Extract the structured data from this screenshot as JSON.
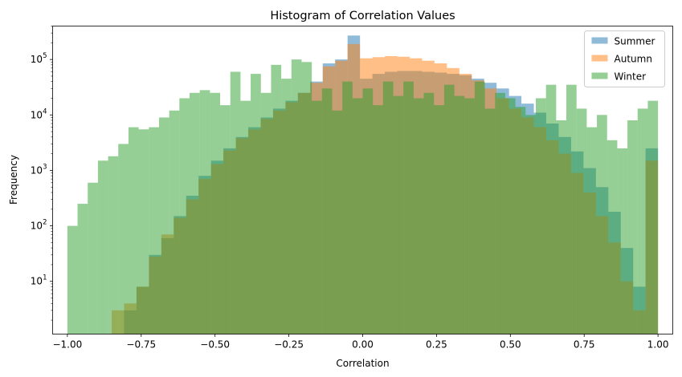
{
  "chart_data": {
    "type": "bar",
    "histogram": true,
    "title": "Histogram of Correlation Values",
    "xlabel": "Correlation",
    "ylabel": "Frequency",
    "xlim": [
      -1.05,
      1.05
    ],
    "ylim": [
      1.12,
      400000
    ],
    "yscale": "log",
    "x_ticks": [
      -1.0,
      -0.75,
      -0.5,
      -0.25,
      0.0,
      0.25,
      0.5,
      0.75,
      1.0
    ],
    "x_tick_labels": [
      "−1.00",
      "−0.75",
      "−0.50",
      "−0.25",
      "0.00",
      "0.25",
      "0.50",
      "0.75",
      "1.00"
    ],
    "y_ticks": [
      {
        "value": 10,
        "base": "10",
        "exp": "1"
      },
      {
        "value": 100,
        "base": "10",
        "exp": "2"
      },
      {
        "value": 1000,
        "base": "10",
        "exp": "3"
      },
      {
        "value": 10000,
        "base": "10",
        "exp": "4"
      },
      {
        "value": 100000,
        "base": "10",
        "exp": "5"
      }
    ],
    "grid": false,
    "legend_position": "top-right",
    "alpha": 0.5,
    "series": [
      {
        "name": "Summer",
        "color": "#1f77b4",
        "bin_start": -0.85,
        "bin_end": 1.0,
        "values": [
          1,
          3,
          8,
          30,
          60,
          150,
          350,
          800,
          1500,
          2500,
          4000,
          6000,
          9000,
          13000,
          18000,
          25000,
          40000,
          85000,
          100000,
          270000,
          45000,
          55000,
          60000,
          62000,
          62000,
          60000,
          58000,
          55000,
          52000,
          45000,
          38000,
          30000,
          22000,
          16000,
          11000,
          7000,
          4000,
          2200,
          1100,
          500,
          180,
          40,
          8,
          2500
        ]
      },
      {
        "name": "Autumn",
        "color": "#ff7f0e",
        "bin_start": -0.85,
        "bin_end": 1.0,
        "values": [
          3,
          4,
          8,
          28,
          70,
          140,
          300,
          700,
          1300,
          2300,
          3800,
          5500,
          8500,
          12000,
          17000,
          25000,
          38000,
          75000,
          95000,
          190000,
          105000,
          110000,
          115000,
          112000,
          105000,
          95000,
          85000,
          70000,
          55000,
          42000,
          30000,
          20000,
          13000,
          9000,
          6000,
          3500,
          2000,
          900,
          400,
          150,
          50,
          10,
          3,
          1500
        ]
      },
      {
        "name": "Winter",
        "color": "#2ca02c",
        "bin_start": -1.0,
        "bin_end": 1.0,
        "values": [
          100,
          250,
          600,
          1500,
          1800,
          3000,
          6000,
          5500,
          6000,
          9000,
          12000,
          20000,
          25000,
          28000,
          25000,
          15000,
          60000,
          18000,
          55000,
          25000,
          80000,
          45000,
          100000,
          90000,
          18000,
          30000,
          12000,
          40000,
          20000,
          30000,
          15000,
          40000,
          22000,
          40000,
          20000,
          25000,
          15000,
          35000,
          22000,
          20000,
          40000,
          13000,
          25000,
          20000,
          14000,
          10000,
          20000,
          35000,
          8000,
          35000,
          13000,
          6000,
          10000,
          3500,
          2500,
          8000,
          13000,
          18000
        ]
      }
    ]
  }
}
